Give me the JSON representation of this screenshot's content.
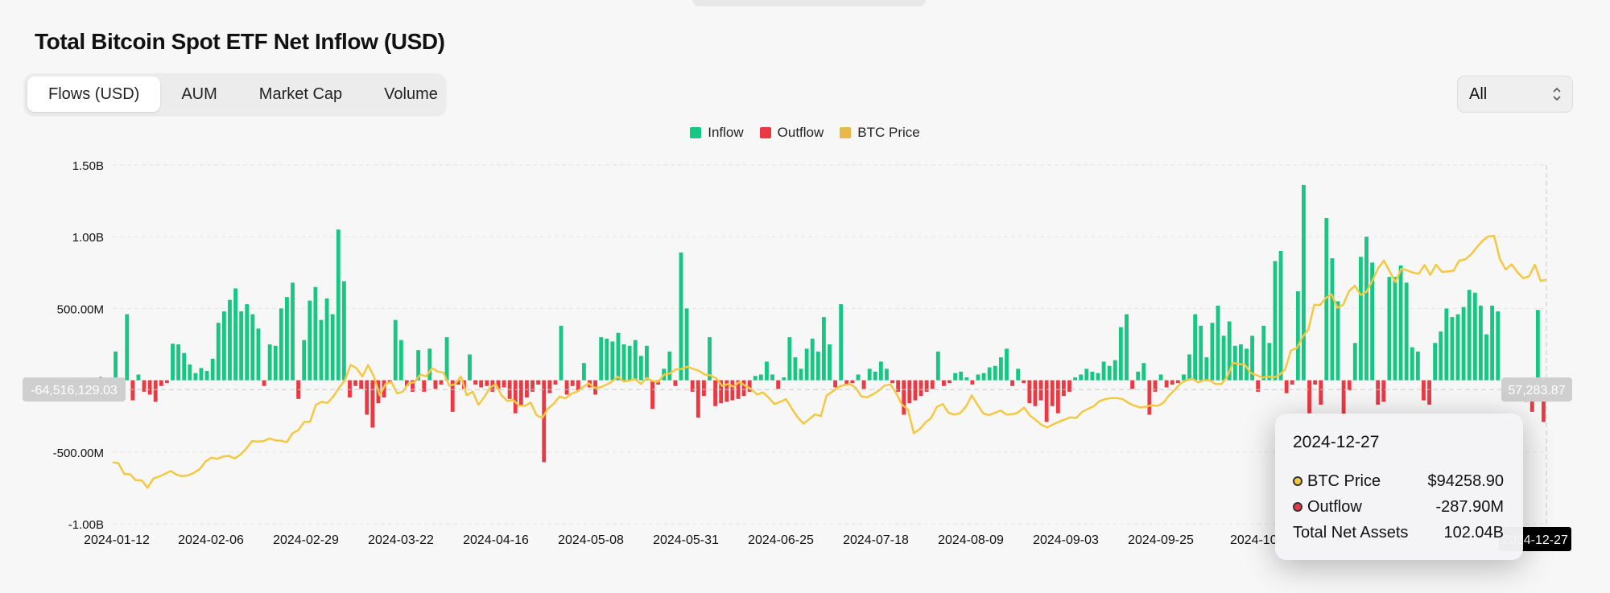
{
  "page": {
    "title": "Total Bitcoin Spot ETF Net Inflow (USD)"
  },
  "tabs": [
    {
      "label": "Flows (USD)",
      "active": true
    },
    {
      "label": "AUM",
      "active": false
    },
    {
      "label": "Market Cap",
      "active": false
    },
    {
      "label": "Volume",
      "active": false
    }
  ],
  "range_select": {
    "value": "All"
  },
  "colors": {
    "inflow": "#16c784",
    "outflow": "#ea3943",
    "btc_price": "#f5c842"
  },
  "crosshair": {
    "y_readout": "-64,516,129.03",
    "right_readout": "57,283.87",
    "x_readout": "2024-12-27"
  },
  "tooltip": {
    "date": "2024-12-27",
    "rows": [
      {
        "label": "BTC Price",
        "value": "$94258.90",
        "dot": "#f5c842"
      },
      {
        "label": "Outflow",
        "value": "-287.90M",
        "dot": "#ea3943"
      },
      {
        "label": "Total Net Assets",
        "value": "102.04B",
        "dot": ""
      }
    ]
  },
  "chart_data": {
    "type": "bar",
    "title": "Total Bitcoin Spot ETF Net Inflow (USD)",
    "legend": [
      "Inflow",
      "Outflow",
      "BTC Price"
    ],
    "legend_position": "top-center",
    "grid": true,
    "y_ticks": [
      "1.50B",
      "1.00B",
      "500.00M",
      "0",
      "-500.00M",
      "-1.00B"
    ],
    "y_tick_values": [
      1500,
      1000,
      500,
      0,
      -500,
      -1000
    ],
    "ylim": [
      -1000,
      1500
    ],
    "y_unit": "M USD",
    "x_ticks": [
      "2024-01-12",
      "2024-02-06",
      "2024-02-29",
      "2024-03-22",
      "2024-04-16",
      "2024-05-08",
      "2024-05-31",
      "2024-06-25",
      "2024-07-18",
      "2024-08-09",
      "2024-09-03",
      "2024-09-25",
      "2024-10-",
      "2024-12-27"
    ],
    "x_range": [
      "2024-01-12",
      "2024-12-27"
    ],
    "flows_musd": [
      200,
      -70,
      460,
      -140,
      40,
      -80,
      -100,
      -150,
      -40,
      -20,
      255,
      250,
      190,
      110,
      50,
      85,
      65,
      150,
      400,
      480,
      560,
      640,
      480,
      530,
      460,
      360,
      -40,
      250,
      240,
      500,
      580,
      680,
      -130,
      280,
      555,
      650,
      420,
      570,
      460,
      1050,
      690,
      -120,
      -40,
      -60,
      -240,
      -330,
      -160,
      -120,
      -20,
      420,
      280,
      -40,
      -80,
      210,
      -80,
      220,
      -60,
      -30,
      300,
      -220,
      -30,
      -60,
      180,
      -30,
      -50,
      -40,
      -80,
      -60,
      -50,
      -130,
      -230,
      -170,
      -120,
      -80,
      -30,
      -570,
      -90,
      -30,
      380,
      -100,
      -40,
      -70,
      120,
      -50,
      -100,
      300,
      290,
      270,
      330,
      250,
      240,
      280,
      170,
      240,
      -200,
      -30,
      80,
      200,
      -40,
      890,
      500,
      -80,
      -260,
      -110,
      300,
      -180,
      -160,
      -150,
      -140,
      -130,
      -110,
      -80,
      30,
      40,
      130,
      40,
      -60,
      20,
      300,
      160,
      80,
      220,
      290,
      200,
      440,
      250,
      -50,
      530,
      -30,
      -20,
      40,
      -60,
      80,
      60,
      130,
      80,
      -20,
      -80,
      -240,
      -160,
      -140,
      -110,
      -80,
      -60,
      200,
      -40,
      -20,
      50,
      60,
      20,
      -30,
      40,
      50,
      90,
      100,
      160,
      220,
      -40,
      80,
      -20,
      -160,
      -180,
      -140,
      -290,
      -180,
      -230,
      -110,
      -80,
      20,
      40,
      80,
      60,
      50,
      130,
      100,
      140,
      370,
      460,
      -60,
      60,
      120,
      -240,
      -80,
      40,
      -50,
      -30,
      -20,
      40,
      180,
      460,
      380,
      160,
      400,
      520,
      310,
      410,
      240,
      250,
      220,
      310,
      -80,
      380,
      260,
      830,
      900,
      -90,
      -30,
      620,
      1360,
      -230,
      -30,
      -170,
      1130,
      850,
      550,
      -250,
      -70,
      260,
      860,
      1000,
      820,
      -170,
      -150,
      720,
      720,
      800,
      680,
      230,
      200,
      -140,
      -170,
      260,
      340,
      500,
      440,
      460,
      510,
      630,
      610,
      520,
      320,
      520,
      480,
      -90,
      -140,
      -100,
      -40,
      -150,
      -220,
      490,
      -290
    ],
    "btc_price_usd": [
      46300,
      46000,
      43200,
      43100,
      41500,
      41500,
      39500,
      42000,
      42500,
      43200,
      44000,
      43000,
      42600,
      42800,
      43500,
      44500,
      46500,
      47500,
      47200,
      47800,
      48000,
      47300,
      48300,
      49900,
      51900,
      51800,
      51900,
      52600,
      52100,
      52000,
      51600,
      54000,
      54800,
      57000,
      57000,
      61500,
      62300,
      62000,
      63700,
      66000,
      68000,
      72100,
      71200,
      69000,
      72000,
      69000,
      64000,
      67000,
      67600,
      64500,
      65000,
      67200,
      67500,
      69500,
      69000,
      71200,
      70300,
      70000,
      66500,
      67000,
      69000,
      64000,
      65000,
      61500,
      63500,
      66000,
      67000,
      64000,
      62500,
      62800,
      61300,
      61200,
      62100,
      58800,
      58000,
      60500,
      61800,
      63700,
      63200,
      64400,
      65000,
      66200,
      67200,
      66000,
      66100,
      66800,
      67600,
      69000,
      67700,
      67900,
      68300,
      67000,
      68600,
      67800,
      67600,
      69500,
      69800,
      70900,
      71000,
      71600,
      71000,
      70500,
      69500,
      69300,
      68500,
      66500,
      67000,
      66300,
      67600,
      66500,
      65700,
      64200,
      64800,
      63400,
      61700,
      62300,
      63000,
      60500,
      58200,
      56500,
      57700,
      59000,
      58500,
      64000,
      65000,
      66200,
      66700,
      67000,
      66000,
      63700,
      63500,
      64300,
      65300,
      66600,
      66900,
      64500,
      61500,
      60300,
      54000,
      55000,
      56800,
      58000,
      61000,
      61700,
      59400,
      58900,
      59300,
      61000,
      64000,
      61500,
      59200,
      58800,
      59400,
      60000,
      58900,
      59000,
      59500,
      60800,
      58700,
      57500,
      56200,
      55500,
      56300,
      57000,
      57600,
      58200,
      58000,
      59600,
      60400,
      61100,
      62500,
      63000,
      63300,
      63300,
      63000,
      62000,
      61300,
      60800,
      61000,
      61400,
      61200,
      62000,
      64000,
      65500,
      67200,
      68000,
      68400,
      67400,
      68000,
      68000,
      67000,
      67000,
      68900,
      72600,
      72300,
      72200,
      70000,
      69400,
      68700,
      69000,
      68700,
      69400,
      70900,
      75900,
      76500,
      79500,
      81500,
      88000,
      87900,
      89800,
      90700,
      87200,
      88000,
      91600,
      93000,
      90600,
      91400,
      94300,
      97600,
      99700,
      96800,
      94000,
      97500,
      97100,
      96500,
      96200,
      98500,
      95900,
      98600,
      96700,
      96800,
      97000,
      99700,
      100000,
      101300,
      103200,
      104900,
      106100,
      106200,
      100000,
      97300,
      98700,
      96600,
      95000,
      95500,
      98600,
      94300,
      94600
    ],
    "selected_date": "2024-12-27",
    "selected_values": {
      "btc_price": 94258.9,
      "outflow": -287.9,
      "total_net_assets": "102.04B"
    }
  }
}
